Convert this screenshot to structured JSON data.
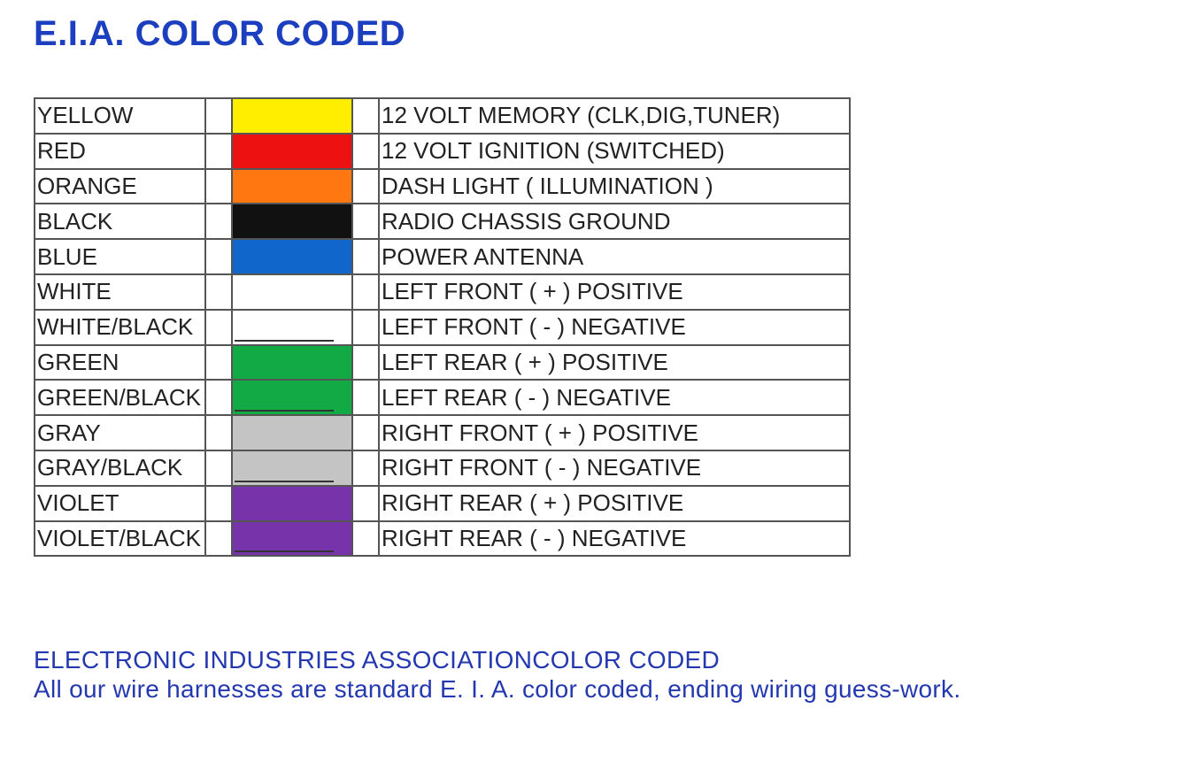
{
  "header": {
    "title": "E.I.A. COLOR CODED"
  },
  "table": {
    "rows": [
      {
        "name": "YELLOW",
        "color": "#ffee00",
        "description": "12 VOLT MEMORY (CLK,DIG,TUNER)"
      },
      {
        "name": "RED",
        "color": "#ee1111",
        "description": "12 VOLT IGNITION (SWITCHED)"
      },
      {
        "name": "ORANGE",
        "color": "#ff7711",
        "description": "DASH LIGHT ( ILLUMINATION )"
      },
      {
        "name": "BLACK",
        "color": "#111111",
        "description": "RADIO CHASSIS GROUND"
      },
      {
        "name": "BLUE",
        "color": "#1166cc",
        "description": "POWER ANTENNA"
      },
      {
        "name": "WHITE",
        "color": "#ffffff",
        "description": "LEFT FRONT ( + ) POSITIVE"
      },
      {
        "name": "WHITE/BLACK",
        "color": "#ffffff",
        "stripe_color": "#333333",
        "description": "LEFT FRONT ( -  ) NEGATIVE"
      },
      {
        "name": "GREEN",
        "color": "#11aa44",
        "description": "LEFT REAR ( + ) POSITIVE"
      },
      {
        "name": "GREEN/BLACK",
        "color": "#11aa44",
        "stripe_color": "#333333",
        "description": "LEFT REAR ( -  ) NEGATIVE"
      },
      {
        "name": "GRAY",
        "color": "#c4c4c4",
        "description": "RIGHT FRONT ( + ) POSITIVE"
      },
      {
        "name": "GRAY/BLACK",
        "color": "#c4c4c4",
        "stripe_color": "#333333",
        "description": "RIGHT FRONT ( -  ) NEGATIVE"
      },
      {
        "name": "VIOLET",
        "color": "#7733aa",
        "description": "RIGHT REAR ( + ) POSITIVE"
      },
      {
        "name": "VIOLET/BLACK",
        "color": "#7733aa",
        "stripe_color": "#333333",
        "description": "RIGHT REAR ( -  ) NEGATIVE"
      }
    ]
  },
  "footer": {
    "line1": "ELECTRONIC INDUSTRIES ASSOCIATIONCOLOR CODED",
    "line2": "All our wire harnesses are standard E. I. A. color coded, ending wiring guess-work."
  }
}
